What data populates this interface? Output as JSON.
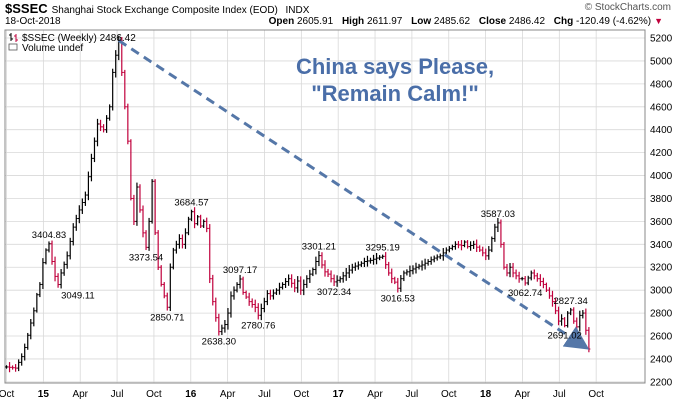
{
  "header": {
    "symbol": "$SSEC",
    "description": "Shanghai Stock Exchange Composite Index (EOD)",
    "exchange": "INDX",
    "date": "18-Oct-2018",
    "logo": "© StockCharts.com",
    "open_label": "Open",
    "open": "2605.91",
    "high_label": "High",
    "high": "2611.97",
    "low_label": "Low",
    "low": "2485.62",
    "close_label": "Close",
    "close": "2486.42",
    "chg_label": "Chg",
    "chg": "-120.49 (-4.62%)",
    "chg_icon": "down-triangle-icon",
    "down_color": "#c0003c"
  },
  "chart_data": {
    "type": "bar",
    "subtype": "ohlc-weekly",
    "legend": [
      {
        "icon": "ohlc-bar-icon",
        "text": "$SSEC (Weekly) 2486.42"
      },
      {
        "icon": "",
        "text": "Volume undef"
      }
    ],
    "y_ticks": [
      2200,
      2400,
      2600,
      2800,
      3000,
      3200,
      3400,
      3600,
      3800,
      4000,
      4200,
      4400,
      4600,
      4800,
      5000,
      5200
    ],
    "ylim": [
      2190,
      5270
    ],
    "x_ticks": [
      "Oct",
      "15",
      "Apr",
      "Jul",
      "Oct",
      "16",
      "Apr",
      "Jul",
      "Oct",
      "17",
      "Apr",
      "Jul",
      "Oct",
      "18",
      "Apr",
      "Jul",
      "Oct"
    ],
    "x_ticks_bold": [
      "15",
      "16",
      "17",
      "18"
    ],
    "xlim": [
      0,
      211
    ],
    "grid": true,
    "up_color": "#000000",
    "down_color": "#c0003c",
    "price_path": [
      [
        0,
        2330
      ],
      [
        3,
        2320
      ],
      [
        5,
        2420
      ],
      [
        6,
        2500
      ],
      [
        9,
        2820
      ],
      [
        10,
        2960
      ],
      [
        11,
        3050
      ],
      [
        12,
        3240
      ],
      [
        13,
        3350
      ],
      [
        14,
        3404.83
      ],
      [
        15,
        3250
      ],
      [
        16,
        3120
      ],
      [
        17,
        3049.11
      ],
      [
        18,
        3150
      ],
      [
        20,
        3300
      ],
      [
        22,
        3550
      ],
      [
        24,
        3700
      ],
      [
        26,
        3830
      ],
      [
        28,
        4150
      ],
      [
        30,
        4450
      ],
      [
        32,
        4400
      ],
      [
        34,
        4600
      ],
      [
        35,
        4900
      ],
      [
        36,
        5050
      ],
      [
        37,
        5178
      ],
      [
        38,
        4900
      ],
      [
        40,
        4300
      ],
      [
        41,
        3800
      ],
      [
        42,
        3600
      ],
      [
        43,
        3900
      ],
      [
        44,
        3700
      ],
      [
        45,
        3500
      ],
      [
        46,
        3373.54
      ],
      [
        47,
        3600
      ],
      [
        48,
        3950
      ],
      [
        49,
        3500
      ],
      [
        50,
        3200
      ],
      [
        51,
        3050
      ],
      [
        52,
        2950
      ],
      [
        53,
        2850.71
      ],
      [
        54,
        3200
      ],
      [
        55,
        3350
      ],
      [
        56,
        3400
      ],
      [
        57,
        3450
      ],
      [
        58,
        3400
      ],
      [
        59,
        3500
      ],
      [
        60,
        3620
      ],
      [
        61,
        3684.57
      ],
      [
        62,
        3580
      ],
      [
        63,
        3640
      ],
      [
        64,
        3560
      ],
      [
        65,
        3600
      ],
      [
        66,
        3539
      ],
      [
        67,
        3100
      ],
      [
        68,
        2900
      ],
      [
        69,
        2760
      ],
      [
        70,
        2638.3
      ],
      [
        72,
        2700
      ],
      [
        73,
        2800
      ],
      [
        74,
        2950
      ],
      [
        75,
        3000
      ],
      [
        76,
        3050
      ],
      [
        77,
        3097.17
      ],
      [
        78,
        2980
      ],
      [
        80,
        2900
      ],
      [
        82,
        2850
      ],
      [
        83,
        2780.76
      ],
      [
        85,
        2900
      ],
      [
        86,
        2970
      ],
      [
        87,
        2950
      ],
      [
        89,
        3000
      ],
      [
        91,
        3050
      ],
      [
        93,
        3100
      ],
      [
        95,
        3020
      ],
      [
        96,
        3080
      ],
      [
        97,
        3000
      ],
      [
        99,
        3100
      ],
      [
        101,
        3180
      ],
      [
        102,
        3250
      ],
      [
        103,
        3301.21
      ],
      [
        104,
        3220
      ],
      [
        105,
        3160
      ],
      [
        106,
        3140
      ],
      [
        107,
        3100
      ],
      [
        108,
        3072.34
      ],
      [
        110,
        3100
      ],
      [
        112,
        3150
      ],
      [
        114,
        3200
      ],
      [
        116,
        3220
      ],
      [
        118,
        3250
      ],
      [
        120,
        3260
      ],
      [
        122,
        3280
      ],
      [
        124,
        3295.19
      ],
      [
        126,
        3150
      ],
      [
        127,
        3100
      ],
      [
        128,
        3070
      ],
      [
        129,
        3016.53
      ],
      [
        130,
        3100
      ],
      [
        131,
        3150
      ],
      [
        133,
        3170
      ],
      [
        135,
        3200
      ],
      [
        137,
        3220
      ],
      [
        139,
        3250
      ],
      [
        141,
        3280
      ],
      [
        143,
        3300
      ],
      [
        145,
        3350
      ],
      [
        147,
        3380
      ],
      [
        148,
        3400
      ],
      [
        150,
        3390
      ],
      [
        151,
        3420
      ],
      [
        152,
        3380
      ],
      [
        154,
        3400
      ],
      [
        156,
        3350
      ],
      [
        158,
        3300
      ],
      [
        159,
        3350
      ],
      [
        160,
        3450
      ],
      [
        161,
        3550
      ],
      [
        162,
        3587.03
      ],
      [
        163,
        3400
      ],
      [
        164,
        3200
      ],
      [
        165,
        3150
      ],
      [
        166,
        3200
      ],
      [
        167,
        3150
      ],
      [
        169,
        3100
      ],
      [
        170,
        3100
      ],
      [
        171,
        3062.74
      ],
      [
        173,
        3150
      ],
      [
        175,
        3100
      ],
      [
        177,
        3050
      ],
      [
        179,
        2950
      ],
      [
        180,
        2900
      ],
      [
        181,
        2820
      ],
      [
        182,
        2730
      ],
      [
        183,
        2750
      ],
      [
        184,
        2691.02
      ],
      [
        185,
        2800
      ],
      [
        186,
        2827.34
      ],
      [
        187,
        2730
      ],
      [
        188,
        2680
      ],
      [
        189,
        2780
      ],
      [
        190,
        2800
      ],
      [
        191,
        2650
      ],
      [
        192,
        2486.42
      ]
    ],
    "point_labels": [
      {
        "x": 14,
        "y": 3404.83,
        "text": "3404.83",
        "pos": "above"
      },
      {
        "x": 17,
        "y": 3049.11,
        "text": "3049.11",
        "pos": "right"
      },
      {
        "x": 46,
        "y": 3373.54,
        "text": "3373.54",
        "pos": "below"
      },
      {
        "x": 53,
        "y": 2850.71,
        "text": "2850.71",
        "pos": "below"
      },
      {
        "x": 61,
        "y": 3684.57,
        "text": "3684.57",
        "pos": "above"
      },
      {
        "x": 70,
        "y": 2638.3,
        "text": "2638.30",
        "pos": "below"
      },
      {
        "x": 77,
        "y": 3097.17,
        "text": "3097.17",
        "pos": "above"
      },
      {
        "x": 83,
        "y": 2780.76,
        "text": "2780.76",
        "pos": "below"
      },
      {
        "x": 103,
        "y": 3301.21,
        "text": "3301.21",
        "pos": "above"
      },
      {
        "x": 108,
        "y": 3072.34,
        "text": "3072.34",
        "pos": "below"
      },
      {
        "x": 124,
        "y": 3295.19,
        "text": "3295.19",
        "pos": "above"
      },
      {
        "x": 129,
        "y": 3016.53,
        "text": "3016.53",
        "pos": "below"
      },
      {
        "x": 162,
        "y": 3587.03,
        "text": "3587.03",
        "pos": "above"
      },
      {
        "x": 171,
        "y": 3062.74,
        "text": "3062.74",
        "pos": "below"
      },
      {
        "x": 184,
        "y": 2691.02,
        "text": "2691.02",
        "pos": "below"
      },
      {
        "x": 186,
        "y": 2827.34,
        "text": "2827.34",
        "pos": "above"
      }
    ],
    "trendline": {
      "from": [
        37,
        5178
      ],
      "to": [
        192,
        2480
      ],
      "style": "dashed",
      "color": "#5577a8"
    },
    "annotation": [
      "China says Please,",
      "\"Remain Calm!\""
    ],
    "annotation_color": "#4a6ea8"
  }
}
